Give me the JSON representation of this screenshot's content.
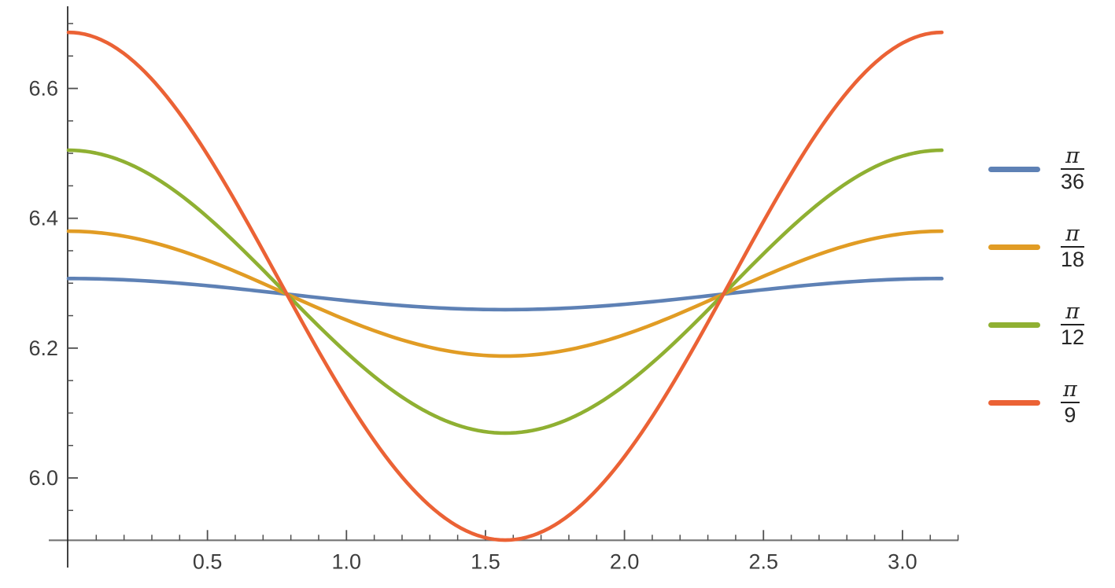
{
  "chart_data": {
    "type": "line",
    "title": "",
    "xlabel": "",
    "ylabel": "",
    "background_color": "#ffffff",
    "grid": false,
    "x_axis": {
      "range": [
        0,
        3.2
      ],
      "major_ticks": [
        0.5,
        1.0,
        1.5,
        2.0,
        2.5,
        3.0
      ],
      "major_tick_labels": [
        "0.5",
        "1.0",
        "1.5",
        "2.0",
        "2.5",
        "3.0"
      ],
      "minor_tick_step": 0.1,
      "minor_tick_min": 0.1,
      "minor_tick_max": 3.2
    },
    "y_axis": {
      "range": [
        5.904,
        6.727
      ],
      "major_ticks": [
        6.0,
        6.2,
        6.4,
        6.6
      ],
      "major_tick_labels": [
        "6.0",
        "6.2",
        "6.4",
        "6.6"
      ],
      "minor_tick_step": 0.05,
      "minor_tick_min": 5.95,
      "minor_tick_max": 6.7
    },
    "legend": {
      "position": "right-outside",
      "entries": [
        {
          "label": "π/36",
          "numerator": "π",
          "denominator": "36",
          "color": "#5e81b5"
        },
        {
          "label": "π/18",
          "numerator": "π",
          "denominator": "18",
          "color": "#e19c24"
        },
        {
          "label": "π/12",
          "numerator": "π",
          "denominator": "12",
          "color": "#8fb032"
        },
        {
          "label": "π/9",
          "numerator": "π",
          "denominator": "9",
          "color": "#eb6235"
        }
      ]
    },
    "series": [
      {
        "id": "pi-36",
        "label": "π/36",
        "color": "#5e81b5",
        "curve_model": "y(x) = 2*pi * exp(k * cos(2x))",
        "k": 0.003813,
        "points": [
          [
            0.0,
            6.307
          ],
          [
            0.262,
            6.304
          ],
          [
            0.524,
            6.295
          ],
          [
            0.785,
            6.283
          ],
          [
            1.047,
            6.271
          ],
          [
            1.309,
            6.262
          ],
          [
            1.571,
            6.259
          ],
          [
            1.833,
            6.262
          ],
          [
            2.094,
            6.271
          ],
          [
            2.356,
            6.283
          ],
          [
            2.618,
            6.295
          ],
          [
            2.88,
            6.304
          ],
          [
            3.142,
            6.307
          ]
        ]
      },
      {
        "id": "pi-18",
        "label": "π/18",
        "color": "#e19c24",
        "curve_model": "y(x) = 2*pi * exp(k * cos(2x))",
        "k": 0.015309,
        "points": [
          [
            0.0,
            6.38
          ],
          [
            0.262,
            6.367
          ],
          [
            0.524,
            6.331
          ],
          [
            0.785,
            6.283
          ],
          [
            1.047,
            6.235
          ],
          [
            1.309,
            6.2
          ],
          [
            1.571,
            6.188
          ],
          [
            1.833,
            6.2
          ],
          [
            2.094,
            6.235
          ],
          [
            2.356,
            6.283
          ],
          [
            2.618,
            6.331
          ],
          [
            2.88,
            6.367
          ],
          [
            3.142,
            6.38
          ]
        ]
      },
      {
        "id": "pi-12",
        "label": "π/12",
        "color": "#8fb032",
        "curve_model": "y(x) = 2*pi * exp(k * cos(2x))",
        "k": 0.034668,
        "points": [
          [
            0.0,
            6.505
          ],
          [
            0.262,
            6.475
          ],
          [
            0.524,
            6.393
          ],
          [
            0.785,
            6.283
          ],
          [
            1.047,
            6.175
          ],
          [
            1.309,
            6.097
          ],
          [
            1.571,
            6.069
          ],
          [
            1.833,
            6.097
          ],
          [
            2.094,
            6.175
          ],
          [
            2.356,
            6.283
          ],
          [
            2.618,
            6.393
          ],
          [
            2.88,
            6.475
          ],
          [
            3.142,
            6.505
          ]
        ]
      },
      {
        "id": "pi-9",
        "label": "π/9",
        "color": "#eb6235",
        "curve_model": "y(x) = 2*pi * exp(k * cos(2x))",
        "k": 0.062203,
        "points": [
          [
            0.0,
            6.686
          ],
          [
            0.262,
            6.631
          ],
          [
            0.524,
            6.482
          ],
          [
            0.785,
            6.283
          ],
          [
            1.047,
            6.091
          ],
          [
            1.309,
            5.954
          ],
          [
            1.571,
            5.904
          ],
          [
            1.833,
            5.954
          ],
          [
            2.094,
            6.091
          ],
          [
            2.356,
            6.283
          ],
          [
            2.618,
            6.482
          ],
          [
            2.88,
            6.631
          ],
          [
            3.142,
            6.686
          ]
        ]
      }
    ]
  },
  "style": {
    "axis_color": "#4a4a4a",
    "tick_color": "#4f4f4f",
    "tick_label_color": "#3d3d3d",
    "curve_stroke_width": 4.6
  }
}
